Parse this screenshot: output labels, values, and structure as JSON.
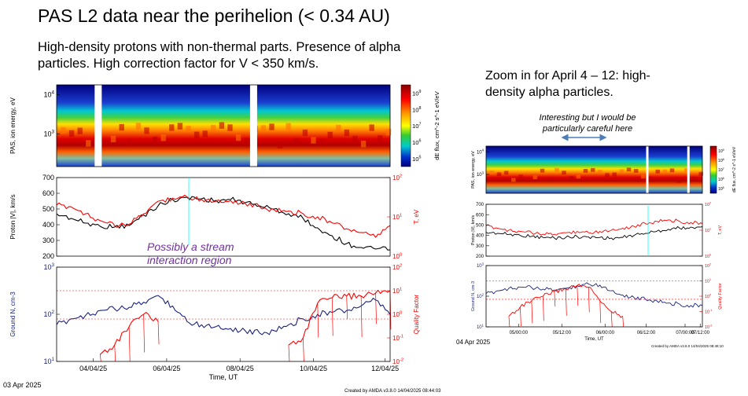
{
  "slide": {
    "title": "PAS L2 data near the perihelion (< 0.34 AU)",
    "subtitle": "High-density protons with non-thermal parts. Presence of alpha particles. High correction factor for V < 350 km/s.",
    "zoom_note": "Zoom in for April 4 – 12: high-density alpha particles.",
    "interest_note": "Interesting but I would be particularly careful here",
    "stream_note": "Possibly a stream interaction region"
  },
  "colors": {
    "proton_speed": "#000000",
    "temperature": "#ff0000",
    "density": "#1a237e",
    "quality": "#ff0000",
    "spectrogram_bg": "#00007f",
    "note_purple": "#7030a0",
    "arrow": "#4a7ebb"
  },
  "chart_data": [
    {
      "id": "main",
      "type": "line",
      "start_date": "03 Apr 2025",
      "xlabel": "Time, UT",
      "x_ticks": [
        "04/04/25",
        "06/04/25",
        "08/04/25",
        "10/04/25",
        "12/04/25"
      ],
      "credit": "Created by AMDA v3.8.0 14/04/2025 08:44:03",
      "panels": [
        {
          "type": "heatmap",
          "ylabel": "PAS, ion energy, eV",
          "y_ticks": [
            "10^4",
            "10^3"
          ],
          "colorbar_label": "dE flux, cm^-2 s^-1 eV/eV",
          "colorbar_ticks": [
            "10^9",
            "10^8",
            "10^7",
            "10^6",
            "10^5"
          ]
        },
        {
          "type": "line",
          "ylabel": "Proton |V|, km/s",
          "y_ticks": [
            "700",
            "600",
            "500",
            "400",
            "300",
            "200"
          ],
          "ylim": [
            200,
            700
          ],
          "y2label": "T, eV",
          "y2_ticks": [
            "10^2",
            "10^1",
            "10^0"
          ],
          "series": [
            {
              "name": "Proton |V|",
              "axis": "left",
              "color": "black",
              "values": [
                470,
                440,
                410,
                390,
                385,
                395,
                460,
                520,
                560,
                575,
                565,
                555,
                560,
                540,
                520,
                500,
                470,
                440,
                380,
                330,
                280,
                255,
                245,
                240
              ]
            },
            {
              "name": "T",
              "axis": "right",
              "color": "red",
              "values": [
                20,
                18,
                12,
                8,
                6,
                6.5,
                12,
                25,
                30,
                32,
                28,
                25,
                26,
                22,
                18,
                15,
                14,
                12,
                10,
                7,
                5,
                4,
                3,
                6
              ]
            }
          ]
        },
        {
          "type": "line",
          "ylabel": "Ground N, cm-3",
          "y_ticks": [
            "10^3",
            "10^2",
            "10^1"
          ],
          "ylim": [
            10,
            1000
          ],
          "y2label": "Quality Factor",
          "y2_ticks": [
            "10^2",
            "10^1",
            "10^0",
            "10^-1",
            "10^-2"
          ],
          "series": [
            {
              "name": "Ground N",
              "axis": "left",
              "color": "navy",
              "values": [
                60,
                80,
                95,
                120,
                130,
                140,
                180,
                250,
                150,
                70,
                60,
                55,
                50,
                45,
                40,
                45,
                60,
                80,
                100,
                110,
                120,
                150,
                200,
                100
              ]
            },
            {
              "name": "Quality Factor",
              "axis": "right",
              "color": "red",
              "values": [
                null,
                null,
                null,
                0.02,
                0.05,
                0.3,
                1.0,
                0.5,
                null,
                null,
                null,
                null,
                null,
                null,
                null,
                null,
                0.05,
                0.1,
                3,
                5,
                6,
                6,
                8,
                10
              ]
            }
          ]
        }
      ]
    },
    {
      "id": "zoom",
      "type": "line",
      "start_date": "04 Apr 2025",
      "xlabel": "Time, UT",
      "x_ticks": [
        "05/00:00",
        "05/12:00",
        "06/00:00",
        "06/12:00",
        "07/00:00",
        "07/12:00"
      ],
      "credit": "Created by AMDA v3.8.0 14/04/2025 08:48:10",
      "panels": [
        {
          "type": "heatmap",
          "ylabel": "PAS, ion energy, eV",
          "y_ticks": [
            "10^4",
            "10^3"
          ],
          "colorbar_label": "dE flux, cm^-2 s^-1 eV/eV",
          "colorbar_ticks": [
            "10^9",
            "10^8",
            "10^7",
            "10^6",
            "10^5"
          ]
        },
        {
          "type": "line",
          "ylabel": "Proton |V|, km/s",
          "y_ticks": [
            "700",
            "600",
            "500",
            "400",
            "300",
            "200"
          ],
          "ylim": [
            200,
            700
          ],
          "y2label": "T, eV",
          "y2_ticks": [
            "10^2",
            "10^1",
            "10^0"
          ],
          "series": [
            {
              "name": "Proton |V|",
              "axis": "left",
              "color": "black",
              "values": [
                430,
                420,
                410,
                400,
                390,
                380,
                375,
                380,
                390,
                385,
                380,
                375,
                380,
                400,
                420,
                440,
                460,
                470,
                480,
                485
              ]
            },
            {
              "name": "T",
              "axis": "right",
              "color": "red",
              "values": [
                15,
                12,
                10,
                9,
                8,
                7,
                7,
                8,
                9,
                8,
                9,
                10,
                12,
                14,
                18,
                22,
                25,
                22,
                20,
                18
              ]
            }
          ]
        },
        {
          "type": "line",
          "ylabel": "Ground N, cm-3",
          "y_ticks": [
            "10^3",
            "10^2",
            "10^1"
          ],
          "ylim": [
            10,
            1000
          ],
          "y2label": "Quality Factor",
          "y2_ticks": [
            "10^2",
            "10^1",
            "10^0",
            "10^-1",
            "10^-2"
          ],
          "series": [
            {
              "name": "Ground N",
              "axis": "left",
              "color": "navy",
              "values": [
                120,
                150,
                180,
                200,
                190,
                170,
                160,
                180,
                220,
                250,
                230,
                150,
                110,
                90,
                80,
                70,
                60,
                55,
                50,
                50
              ]
            },
            {
              "name": "Quality Factor",
              "axis": "right",
              "color": "red",
              "values": [
                null,
                null,
                0.05,
                0.2,
                0.5,
                1.0,
                2,
                3,
                5,
                4,
                0.5,
                0.1,
                0.05,
                null,
                null,
                null,
                null,
                null,
                null,
                null
              ]
            }
          ]
        }
      ]
    }
  ]
}
